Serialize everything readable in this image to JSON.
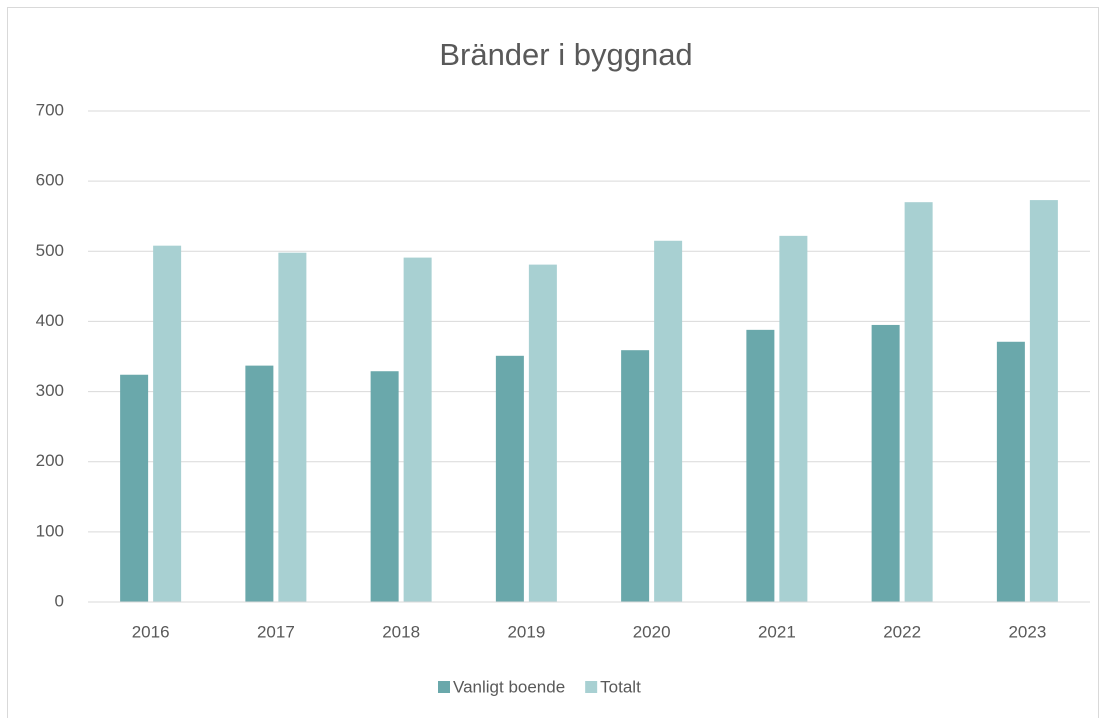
{
  "chart_data": {
    "type": "bar",
    "title": "Bränder i byggnad",
    "categories": [
      "2016",
      "2017",
      "2018",
      "2019",
      "2020",
      "2021",
      "2022",
      "2023"
    ],
    "series": [
      {
        "name": "Vanligt boende",
        "color": "#6aa8ab",
        "values": [
          324,
          337,
          329,
          351,
          359,
          388,
          395,
          371
        ]
      },
      {
        "name": "Totalt",
        "color": "#a8d0d2",
        "values": [
          508,
          498,
          491,
          481,
          515,
          522,
          570,
          573
        ]
      }
    ],
    "ylim": [
      0,
      700
    ],
    "yticks": [
      0,
      100,
      200,
      300,
      400,
      500,
      600,
      700
    ],
    "grid": true,
    "legend": "bottom"
  }
}
